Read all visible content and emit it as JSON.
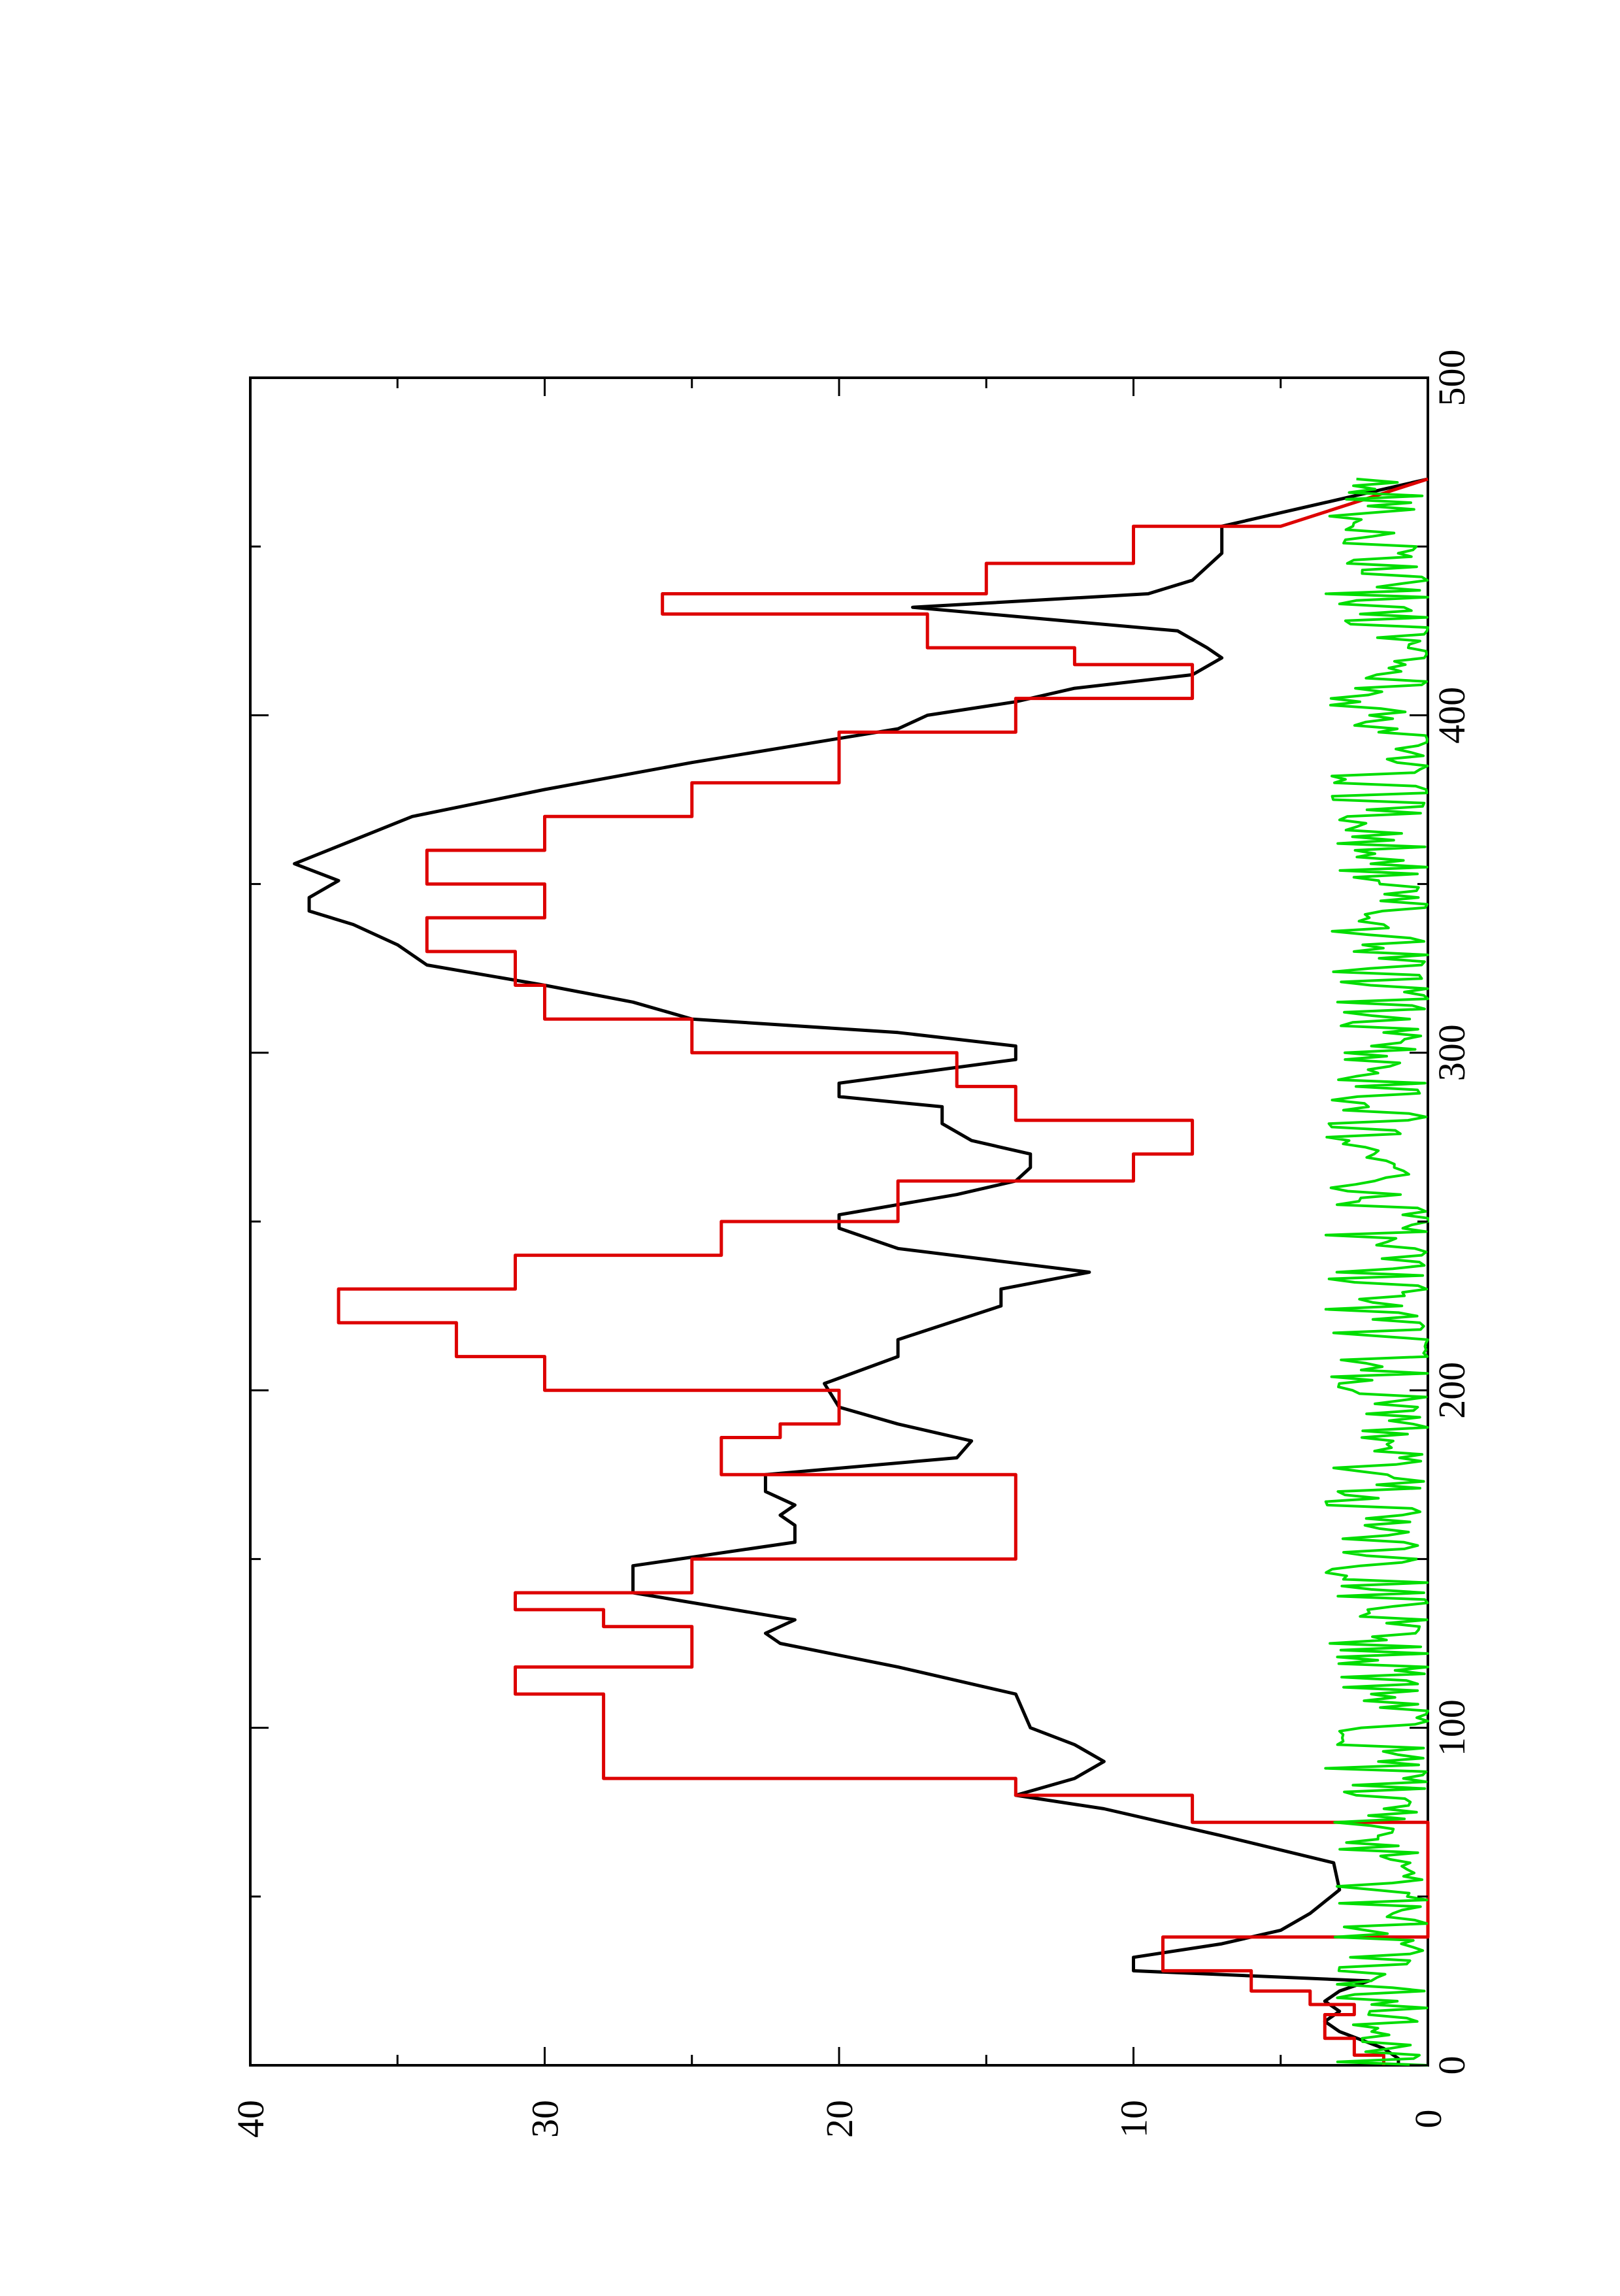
{
  "chart_data": {
    "type": "line",
    "orientation": "rotated-90-ccw",
    "title": "",
    "xlabel": "",
    "ylabel": "",
    "xlim": [
      0,
      500
    ],
    "ylim": [
      0,
      40
    ],
    "x_ticks": [
      0,
      100,
      200,
      300,
      400,
      500
    ],
    "y_ticks": [
      0,
      10,
      20,
      30,
      40
    ],
    "x_tick_labels": [
      "0",
      "100",
      "200",
      "300",
      "400",
      "500"
    ],
    "y_tick_labels": [
      "0",
      "10",
      "20",
      "30",
      "40"
    ],
    "grid": false,
    "legend": "none",
    "colors": {
      "black": "#000000",
      "red": "#dd0000",
      "green": "#00dd00"
    },
    "series": [
      {
        "color": "black",
        "x": [
          0,
          2,
          5,
          10,
          13,
          16,
          19,
          22,
          25,
          28,
          32,
          36,
          40,
          45,
          52,
          60,
          68,
          76,
          80,
          85,
          90,
          95,
          100,
          110,
          118,
          125,
          128,
          132,
          140,
          148,
          155,
          160,
          163,
          166,
          170,
          175,
          180,
          185,
          190,
          195,
          202,
          210,
          215,
          225,
          230,
          235,
          242,
          248,
          252,
          258,
          262,
          266,
          270,
          274,
          279,
          284,
          287,
          291,
          298,
          302,
          306,
          310,
          315,
          320,
          326,
          332,
          338,
          342,
          346,
          351,
          356,
          363,
          370,
          378,
          386,
          396,
          400,
          404,
          408,
          412,
          417,
          420,
          425,
          432,
          436,
          440,
          448,
          456,
          463,
          470
        ],
        "y": [
          1,
          1,
          1.5,
          3,
          3.5,
          3,
          3.5,
          3,
          2,
          10,
          10,
          7,
          5,
          4,
          3,
          3.2,
          7,
          11,
          14,
          12,
          11,
          12,
          13.5,
          14,
          18,
          22,
          22.5,
          21.5,
          27,
          27,
          21.5,
          21.5,
          22,
          21.5,
          22.5,
          22.5,
          16,
          15.5,
          18,
          20,
          20.5,
          18,
          18,
          14.5,
          14.5,
          11.5,
          18,
          20,
          20,
          16,
          14,
          13.5,
          13.5,
          15.5,
          16.5,
          16.5,
          20,
          20,
          14,
          14,
          18,
          25,
          27,
          30,
          34,
          35,
          36.5,
          38,
          38,
          37,
          38.5,
          36.5,
          34.5,
          30,
          25,
          18,
          17,
          14,
          12,
          8,
          7,
          7.5,
          8.5,
          17.5,
          9.5,
          8,
          7,
          7,
          3.5,
          0
        ]
      },
      {
        "color": "red",
        "x": [
          0,
          3,
          3,
          8,
          8,
          15,
          15,
          18,
          18,
          22,
          22,
          28,
          28,
          38,
          38,
          72,
          72,
          80,
          80,
          85,
          85,
          110,
          110,
          118,
          118,
          130,
          130,
          135,
          135,
          140,
          140,
          150,
          150,
          175,
          175,
          186,
          186,
          190,
          190,
          200,
          200,
          210,
          210,
          220,
          220,
          230,
          230,
          240,
          240,
          250,
          250,
          262,
          262,
          270,
          270,
          280,
          280,
          290,
          290,
          300,
          300,
          310,
          310,
          320,
          320,
          330,
          330,
          340,
          340,
          350,
          350,
          360,
          360,
          370,
          370,
          380,
          380,
          395,
          395,
          405,
          405,
          415,
          415,
          420,
          420,
          430,
          430,
          436,
          436,
          445,
          445,
          456,
          456,
          470
        ],
        "y": [
          1.5,
          1.5,
          2.5,
          2.5,
          3.5,
          3.5,
          2.5,
          2.5,
          4,
          4,
          6,
          6,
          9,
          9,
          0,
          0,
          8,
          8,
          14,
          14,
          28,
          28,
          31,
          31,
          25,
          25,
          28,
          28,
          31,
          31,
          25,
          25,
          14,
          14,
          24,
          24,
          22,
          22,
          20,
          20,
          30,
          30,
          33,
          33,
          37,
          37,
          31,
          31,
          24,
          24,
          18,
          18,
          10,
          10,
          8,
          8,
          14,
          14,
          16,
          16,
          25,
          25,
          30,
          30,
          31,
          31,
          34,
          34,
          30,
          30,
          34,
          34,
          30,
          30,
          25,
          25,
          20,
          20,
          14,
          14,
          8,
          8,
          12,
          12,
          17,
          17,
          26,
          26,
          15,
          15,
          10,
          10,
          5,
          0
        ]
      },
      {
        "color": "green",
        "noise": true,
        "x_range": [
          0,
          470
        ],
        "samples": 470,
        "mean": 1.0,
        "max": 3.5,
        "seed": 7
      }
    ]
  }
}
